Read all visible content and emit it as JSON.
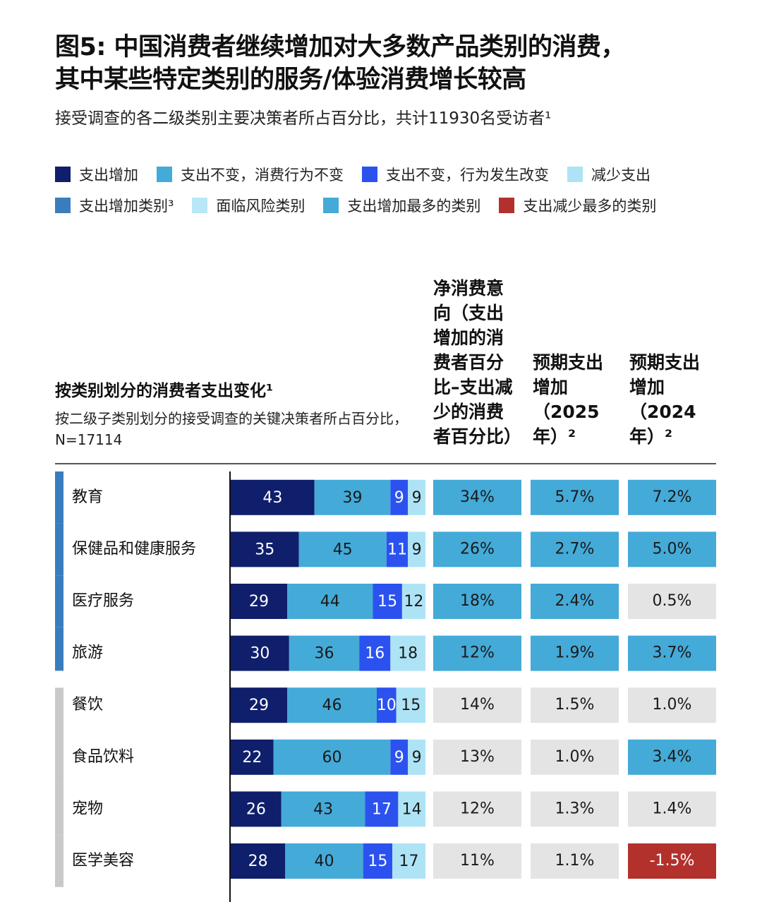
{
  "chart_data": {
    "type": "stacked-bar-table",
    "title": [
      "图5: 中国消费者继续增加对大多数产品类别的消费，",
      "其中某些特定类别的服务/体验消费增长较高"
    ],
    "subtitle": "接受调查的各二级类别主要决策者所占百分比，共计11930名受访者¹",
    "bar_header": "按类别划分的消费者支出变化¹",
    "bar_subheader": "按二级子类别划分的接受调查的关键决策者所占百分比，N=17114",
    "categories": [
      "教育",
      "保健品和健康服务",
      "医疗服务",
      "旅游",
      "餐饮",
      "食品饮料",
      "宠物",
      "医学美容"
    ],
    "category_group_colors": [
      "#3a7dbd",
      "#3a7dbd",
      "#3a7dbd",
      "#3a7dbd",
      "#c9c9c9",
      "#c9c9c9",
      "#c9c9c9",
      "#c9c9c9"
    ],
    "series": [
      {
        "name": "支出增加",
        "color": "#0f1f6b",
        "label_color": "#ffffff",
        "values": [
          43,
          35,
          29,
          30,
          29,
          22,
          26,
          28
        ]
      },
      {
        "name": "支出不变，消费行为不变",
        "color": "#44aad8",
        "label_color": "#1a1a1a",
        "values": [
          39,
          45,
          44,
          36,
          46,
          60,
          43,
          40
        ]
      },
      {
        "name": "支出不变，行为发生改变",
        "color": "#2b52ef",
        "label_color": "#ffffff",
        "values": [
          9,
          11,
          15,
          16,
          10,
          9,
          17,
          15
        ]
      },
      {
        "name": "减少支出",
        "color": "#aee3f6",
        "label_color": "#1a1a1a",
        "values": [
          9,
          9,
          12,
          18,
          15,
          9,
          14,
          17
        ]
      }
    ],
    "highlight_legend": [
      {
        "name": "支出增加类别³",
        "color": "#3a7dbd"
      },
      {
        "name": "面临风险类别",
        "color": "#b9e7f7"
      },
      {
        "name": "支出增加最多的类别",
        "color": "#44aad8"
      },
      {
        "name": "支出减少最多的类别",
        "color": "#b3312c"
      }
    ],
    "columns": [
      {
        "header": "净消费意向（支出增加的消费者百分比–支出减少的消费者百分比）",
        "values": [
          34,
          26,
          18,
          12,
          14,
          13,
          12,
          11
        ],
        "value_labels": [
          "34%",
          "26%",
          "18%",
          "12%",
          "14%",
          "13%",
          "12%",
          "11%"
        ],
        "colors": [
          "#44aad8",
          "#44aad8",
          "#44aad8",
          "#44aad8",
          "#e4e4e4",
          "#e4e4e4",
          "#e4e4e4",
          "#e4e4e4"
        ]
      },
      {
        "header": "预期支出增加（2025年）²",
        "values": [
          5.7,
          2.7,
          2.4,
          1.9,
          1.5,
          1.0,
          1.3,
          1.1
        ],
        "value_labels": [
          "5.7%",
          "2.7%",
          "2.4%",
          "1.9%",
          "1.5%",
          "1.0%",
          "1.3%",
          "1.1%"
        ],
        "colors": [
          "#44aad8",
          "#44aad8",
          "#44aad8",
          "#44aad8",
          "#e4e4e4",
          "#e4e4e4",
          "#e4e4e4",
          "#e4e4e4"
        ]
      },
      {
        "header": "预期支出增加（2024年）²",
        "values": [
          7.2,
          5.0,
          0.5,
          3.7,
          1.0,
          3.4,
          1.4,
          -1.5
        ],
        "value_labels": [
          "7.2%",
          "5.0%",
          "0.5%",
          "3.7%",
          "1.0%",
          "3.4%",
          "1.4%",
          "-1.5%"
        ],
        "colors": [
          "#44aad8",
          "#44aad8",
          "#e4e4e4",
          "#44aad8",
          "#e4e4e4",
          "#44aad8",
          "#e4e4e4",
          "#b3312c"
        ]
      }
    ]
  }
}
